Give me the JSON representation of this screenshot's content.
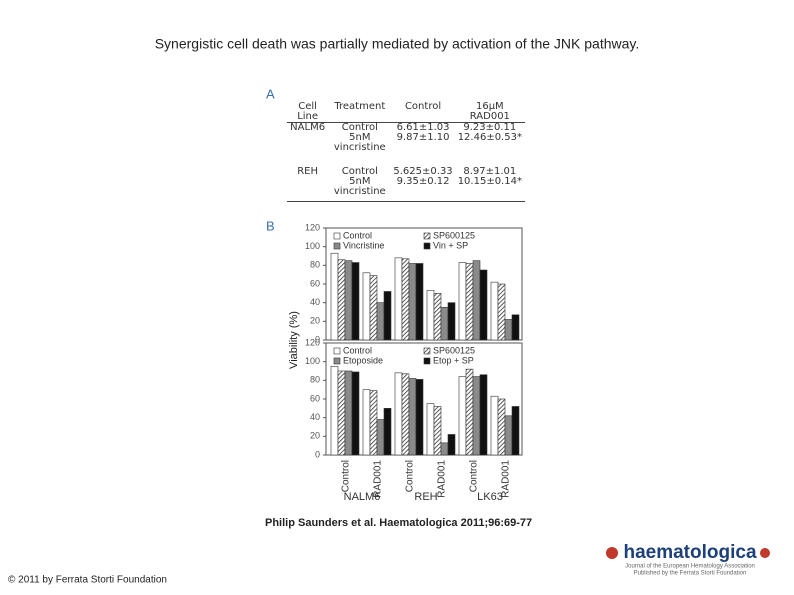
{
  "title": "Synergistic cell death was partially mediated by activation of the JNK pathway.",
  "panel_a": {
    "label": "A",
    "table": {
      "header": [
        "Cell Line",
        "Treatment",
        "Control",
        "16μM RAD001"
      ],
      "rows": [
        [
          "NALM6",
          "Control",
          "6.61±1.03",
          "9.23±0.11"
        ],
        [
          null,
          "5nM vincristine",
          "9.87±1.10",
          "12.46±0.53*"
        ],
        [
          "REH",
          "Control",
          "5.625±0.33",
          "8.97±1.01"
        ],
        [
          null,
          "5nM vincristine",
          "9.35±0.12",
          "10.15±0.14*"
        ]
      ]
    }
  },
  "panel_b": {
    "label": "B",
    "type": "bar",
    "y_label": "Viability (%)",
    "groups": [
      "NALM6",
      "REH",
      "LK63"
    ],
    "categories": [
      "Control",
      "RAD001"
    ],
    "ylim": [
      0,
      120
    ],
    "yticks": [
      0,
      20,
      40,
      60,
      80,
      100,
      120
    ],
    "charts": [
      {
        "series": [
          {
            "name": "Control",
            "color": "#ffffff",
            "values": [
              93,
              72,
              88,
              53,
              83,
              62
            ]
          },
          {
            "name": "SP600125",
            "color": "#9a9a9a",
            "hatched": true,
            "values": [
              86,
              69,
              87,
              50,
              82,
              60
            ]
          },
          {
            "name": "Vincristine",
            "color": "#8a8a8a",
            "values": [
              85,
              40,
              82,
              35,
              85,
              22
            ]
          },
          {
            "name": "Vin + SP",
            "color": "#111111",
            "values": [
              83,
              52,
              82,
              40,
              75,
              27
            ]
          }
        ]
      },
      {
        "series": [
          {
            "name": "Control",
            "color": "#ffffff",
            "values": [
              95,
              70,
              88,
              55,
              84,
              63
            ]
          },
          {
            "name": "SP600125",
            "color": "#9a9a9a",
            "hatched": true,
            "values": [
              90,
              69,
              87,
              52,
              92,
              60
            ]
          },
          {
            "name": "Etoposide",
            "color": "#8a8a8a",
            "values": [
              90,
              38,
              82,
              13,
              84,
              42
            ]
          },
          {
            "name": "Etop + SP",
            "color": "#111111",
            "values": [
              89,
              50,
              81,
              22,
              86,
              52
            ]
          }
        ]
      }
    ]
  },
  "citation": "Philip Saunders et al. Haematologica 2011;96:69-77",
  "copyright": "© 2011 by Ferrata Storti Foundation",
  "logo": {
    "name": "haematologica",
    "tagline": "Journal of the European Hematology Association",
    "publisher": "Published by the Ferrata Storti Foundation"
  }
}
